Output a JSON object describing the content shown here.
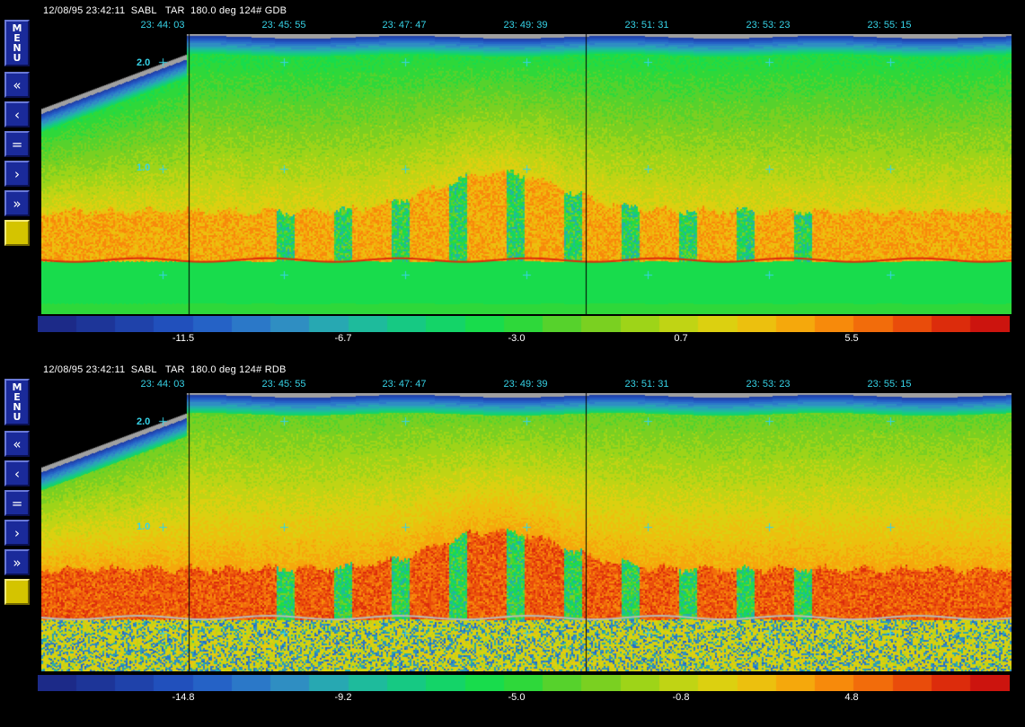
{
  "panels": [
    {
      "id": "gdb",
      "header": "12/08/95 23:42:11  SABL   TAR  180.0 deg 124# GDB",
      "time_labels": [
        "23: 44: 03",
        "23: 45: 55",
        "23: 47: 47",
        "23: 49: 39",
        "23: 51: 31",
        "23: 53: 23",
        "23: 55: 15"
      ],
      "range_labels": [
        "2.0",
        "1.0"
      ],
      "colorbar_ticks": [
        "-11.5",
        "-6.7",
        "-3.0",
        "0.7",
        "5.5"
      ]
    },
    {
      "id": "rdb",
      "header": "12/08/95 23:42:11  SABL   TAR  180.0 deg 124# RDB",
      "time_labels": [
        "23: 44: 03",
        "23: 45: 55",
        "23: 47: 47",
        "23: 49: 39",
        "23: 51: 31",
        "23: 53: 23",
        "23: 55: 15"
      ],
      "range_labels": [
        "2.0",
        "1.0"
      ],
      "colorbar_ticks": [
        "-14.8",
        "-9.2",
        "-5.0",
        "-0.8",
        "4.8"
      ]
    }
  ],
  "toolbar": {
    "menu_letters": [
      "M",
      "E",
      "N",
      "U"
    ],
    "rewind_fast": "«",
    "rewind": "‹",
    "pause": "=",
    "forward": "›",
    "forward_fast": "»",
    "icons": {
      "menu": "menu-icon",
      "rewind_fast": "double-chevron-left-icon",
      "rewind": "chevron-left-icon",
      "pause": "equals-icon",
      "forward": "chevron-right-icon",
      "forward_fast": "double-chevron-right-icon",
      "color": "color-swatch-icon"
    }
  },
  "colors": {
    "background": "#000000",
    "header_text": "#ffffff",
    "time_text": "#36d2e6",
    "button_bg": "#1a2a9a",
    "swatch": "#d4c400",
    "surface_gray": "#a0a0a0"
  }
}
